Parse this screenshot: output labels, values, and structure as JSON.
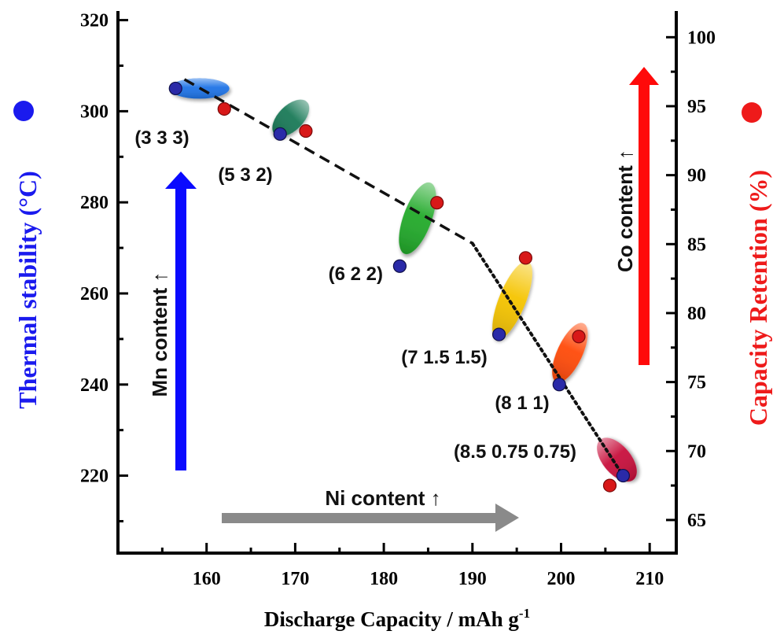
{
  "chart_data": {
    "type": "scatter",
    "xlabel": "Discharge Capacity / mAh g",
    "xlabel_sup": "-1",
    "ylabel_left": "Thermal stability (°C)",
    "ylabel_right": "Capacity Retention (%)",
    "xlim": [
      150,
      213
    ],
    "ylim_left": [
      203,
      322
    ],
    "ylim_right": [
      62.6,
      101.9
    ],
    "x_ticks": [
      160,
      170,
      180,
      190,
      200,
      210
    ],
    "y_left_ticks": [
      220,
      240,
      260,
      280,
      300,
      320
    ],
    "y_right_ticks": [
      65,
      70,
      75,
      80,
      85,
      90,
      95,
      100
    ],
    "grid": false,
    "colors": {
      "thermal": "#1a1aee",
      "retention": "#ee1a1a",
      "axis": "#000000",
      "arrow_mn": "#0a0aff",
      "arrow_co": "#ff0a0a",
      "arrow_ni": "#8a8a8a"
    },
    "series": [
      {
        "name": "Thermal stability",
        "axis": "left",
        "x": [
          156.5,
          168.3,
          181.8,
          193.0,
          199.8,
          207.0
        ],
        "values": [
          305,
          295,
          266,
          251,
          240,
          220
        ]
      },
      {
        "name": "Capacity Retention",
        "axis": "right",
        "x": [
          162.0,
          171.2,
          186.0,
          196.0,
          202.0,
          205.5
        ],
        "values": [
          94.8,
          93.2,
          88.0,
          84.0,
          78.3,
          67.5
        ]
      }
    ],
    "compositions": [
      {
        "label": "(3 3 3)",
        "color": "#1e73e6",
        "cap": 159.2,
        "temp": 305,
        "w": 48,
        "h": 26,
        "angle": 0
      },
      {
        "label": "(5 3 2)",
        "color": "#1a7a58",
        "cap": 169.5,
        "temp": 298.5,
        "w": 32,
        "h": 58,
        "angle": 45
      },
      {
        "label": "(6 2 2)",
        "color": "#22aa2a",
        "cap": 183.8,
        "temp": 276.5,
        "w": 36,
        "h": 96,
        "angle": 20
      },
      {
        "label": "(7 1.5 1.5)",
        "color": "#f5c400",
        "cap": 194.5,
        "temp": 258.5,
        "w": 34,
        "h": 106,
        "angle": 22
      },
      {
        "label": "(8 1 1)",
        "color": "#ff4a0a",
        "cap": 201.0,
        "temp": 247,
        "w": 32,
        "h": 82,
        "angle": 25
      },
      {
        "label": "(8.5 0.75 0.75)",
        "color": "#c8103c",
        "cap": 206.3,
        "temp": 223.5,
        "w": 36,
        "h": 66,
        "angle": -40
      }
    ],
    "trend_dashed": {
      "x": [
        157.5,
        190.0
      ],
      "y": [
        307,
        271
      ]
    },
    "trend_dotted": {
      "x": [
        190.0,
        207.0
      ],
      "y": [
        271,
        220
      ]
    },
    "annotations": {
      "mn": "Mn content ↑",
      "co": "Co content ↑",
      "ni": "Ni content ↑"
    },
    "markers": {
      "left_dot": "blue-dot-icon",
      "right_dot": "red-dot-icon"
    }
  }
}
